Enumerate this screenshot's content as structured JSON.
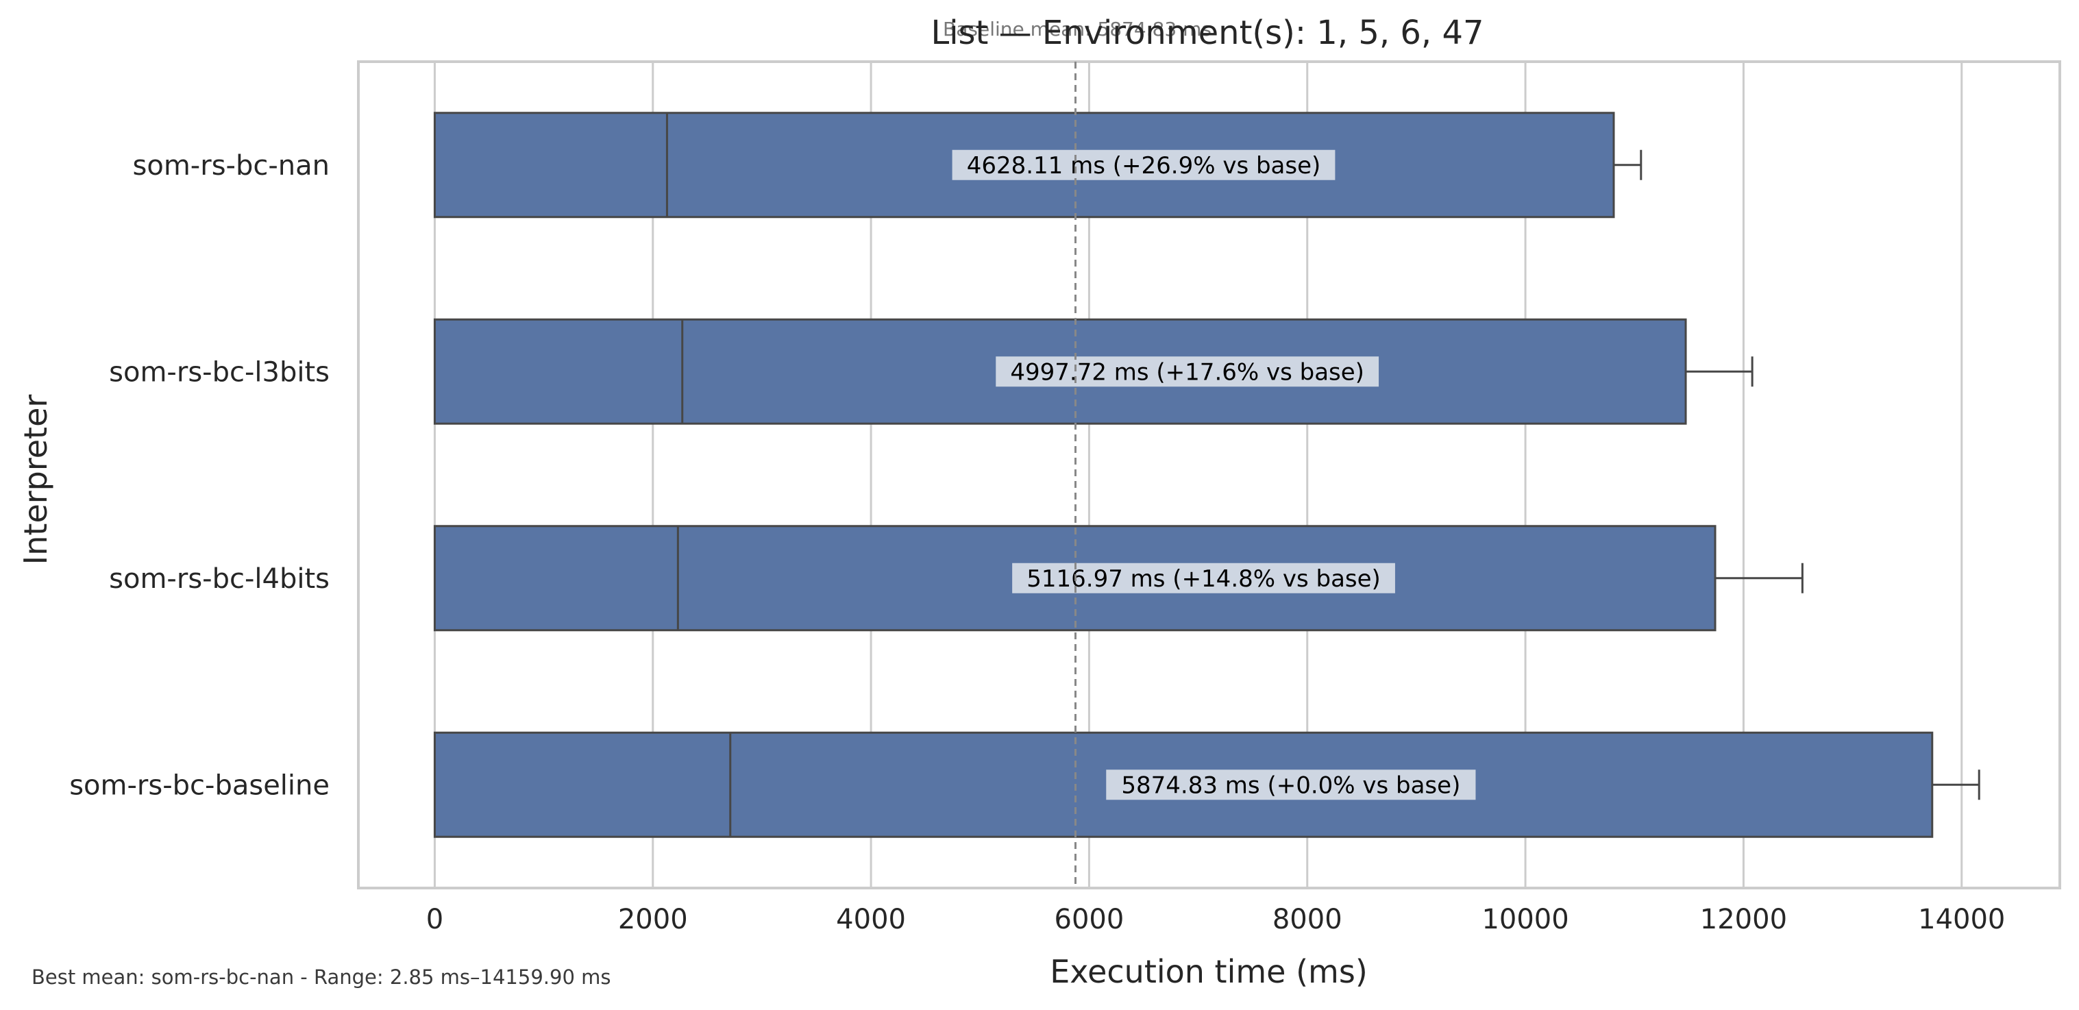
{
  "chart_data": {
    "type": "bar",
    "orientation": "horizontal",
    "title": "List — Environment(s): 1, 5, 6, 47",
    "xlabel": "Execution time (ms)",
    "ylabel": "Interpreter",
    "xlim": [
      -700,
      14900
    ],
    "xticks": [
      0,
      2000,
      4000,
      6000,
      8000,
      10000,
      12000,
      14000
    ],
    "grid": "vertical",
    "categories": [
      "som-rs-bc-nan",
      "som-rs-bc-l3bits",
      "som-rs-bc-l4bits",
      "som-rs-bc-baseline"
    ],
    "box_min": [
      0,
      0,
      0,
      0
    ],
    "box_median": [
      2130,
      2270,
      2230,
      2710
    ],
    "box_max": [
      10810,
      11470,
      11740,
      13730
    ],
    "whisker_max": [
      11060,
      12080,
      12540,
      14160
    ],
    "mean_labels": [
      "4628.11 ms  (+26.9% vs base)",
      "4997.72 ms  (+17.6% vs base)",
      "5116.97 ms  (+14.8% vs base)",
      "5874.83 ms  (+0.0% vs base)"
    ],
    "label_positions": [
      6500,
      6900,
      7050,
      7850
    ],
    "baseline_mean": 5874.83,
    "baseline_note": "Baseline mean: 5874.83 ms",
    "footer_note": "Best mean: som-rs-bc-nan - Range: 2.85 ms–14159.90 ms",
    "colors": {
      "bar": "#5975a4",
      "edge": "#474747",
      "grid": "#cccccc",
      "label_bg": "#d5dbe6",
      "baseline_line": "#888888"
    }
  }
}
